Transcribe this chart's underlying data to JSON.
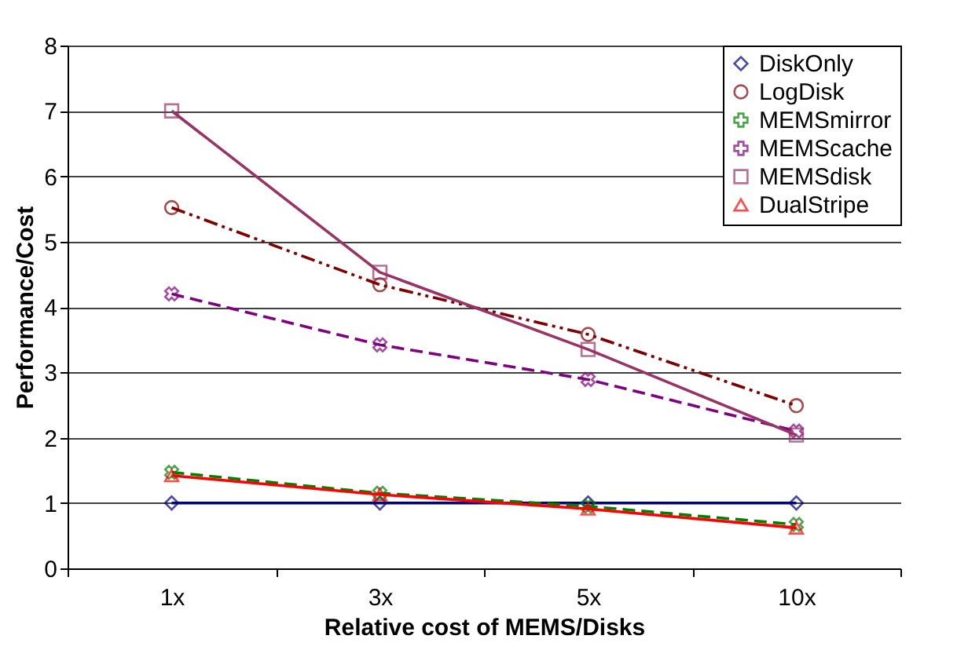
{
  "chart_data": {
    "type": "line",
    "xlabel": "Relative cost of MEMS/Disks",
    "ylabel": "Performance/Cost",
    "categories": [
      "1x",
      "3x",
      "5x",
      "10x"
    ],
    "ylim": [
      0,
      8
    ],
    "yticks": [
      0,
      1,
      2,
      3,
      4,
      5,
      6,
      7,
      8
    ],
    "grid": "y",
    "legend": "top right",
    "series": [
      {
        "name": "DiskOnly",
        "color": "#000080",
        "marker": "diamond",
        "line_style": "solid",
        "values": [
          1,
          1,
          1,
          1
        ]
      },
      {
        "name": "LogDisk",
        "color": "#800000",
        "marker": "circle",
        "line_style": "dashdot",
        "values": [
          5.52,
          4.34,
          3.58,
          2.49
        ]
      },
      {
        "name": "MEMSmirror",
        "color": "#008000",
        "marker": "cross",
        "line_style": "dashed",
        "values": [
          1.47,
          1.15,
          0.95,
          0.67
        ]
      },
      {
        "name": "MEMScache",
        "color": "#800080",
        "marker": "cross",
        "line_style": "dashed",
        "values": [
          4.2,
          3.42,
          2.89,
          2.1
        ]
      },
      {
        "name": "MEMSdisk",
        "color": "#993366",
        "marker": "square",
        "line_style": "solid",
        "values": [
          7.0,
          4.53,
          3.35,
          2.04
        ]
      },
      {
        "name": "DualStripe",
        "color": "#ff0000",
        "marker": "triangle",
        "line_style": "solid",
        "values": [
          1.42,
          1.13,
          0.91,
          0.62
        ]
      }
    ]
  }
}
